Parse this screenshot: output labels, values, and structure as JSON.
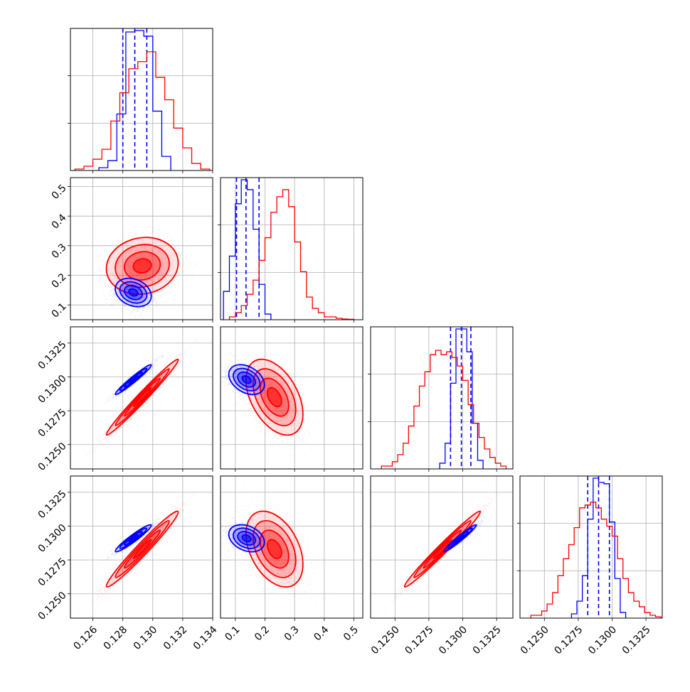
{
  "chart_data": {
    "type": "corner",
    "grid": true,
    "colors": {
      "blue": "#0000ff",
      "red": "#ff0000"
    },
    "axes": [
      {
        "range": [
          0.1245,
          0.134
        ],
        "ticks": [
          "0.126",
          "0.128",
          "0.130",
          "0.132",
          "0.134"
        ]
      },
      {
        "range": [
          0.05,
          0.53
        ],
        "ticks": [
          "0.1",
          "0.2",
          "0.3",
          "0.4",
          "0.5"
        ]
      },
      {
        "range": [
          0.1232,
          0.1337
        ],
        "ticks": [
          "0.1250",
          "0.1275",
          "0.1300",
          "0.1325"
        ]
      },
      {
        "range": [
          0.1232,
          0.1337
        ],
        "ticks": [
          "0.1250",
          "0.1275",
          "0.1300",
          "0.1325"
        ]
      }
    ],
    "series": [
      {
        "color": "blue",
        "quantiles": [
          [
            0.128,
            0.1288,
            0.1296
          ],
          [
            0.104,
            0.136,
            0.18
          ],
          [
            0.1291,
            0.1299,
            0.1306
          ],
          [
            0.1282,
            0.129,
            0.1298
          ]
        ],
        "hist": [
          {
            "edges": [
              0.1264,
              0.127,
              0.1276,
              0.1282,
              0.1288,
              0.1294,
              0.13,
              0.1306,
              0.1312
            ],
            "counts": [
              2,
              7,
              40,
              98,
              99,
              95,
              42,
              10
            ]
          },
          {
            "edges": [
              0.06,
              0.08,
              0.1,
              0.12,
              0.14,
              0.16,
              0.18,
              0.2,
              0.22
            ],
            "counts": [
              20,
              45,
              82,
              99,
              92,
              64,
              25,
              4
            ]
          },
          {
            "edges": [
              0.1283,
              0.1287,
              0.1291,
              0.1295,
              0.1299,
              0.1303,
              0.1307,
              0.1311,
              0.1315
            ],
            "counts": [
              4,
              18,
              60,
              98,
              98,
              82,
              32,
              6
            ]
          },
          {
            "edges": [
              0.127,
              0.1274,
              0.1278,
              0.1282,
              0.1286,
              0.129,
              0.1294,
              0.1298,
              0.1302,
              0.1306,
              0.131
            ],
            "counts": [
              3,
              12,
              30,
              70,
              99,
              96,
              95,
              68,
              28,
              4
            ]
          }
        ],
        "pairs": [
          {
            "x": 0,
            "y": 1,
            "cx": 0.1287,
            "cy": 0.142,
            "sx": 0.0006,
            "sy": 0.024,
            "rho": -0.25
          },
          {
            "x": 0,
            "y": 2,
            "cx": 0.1287,
            "cy": 0.1298,
            "sx": 0.0006,
            "sy": 0.00055,
            "rho": 0.97
          },
          {
            "x": 1,
            "y": 2,
            "cx": 0.138,
            "cy": 0.1298,
            "sx": 0.03,
            "sy": 0.00055,
            "rho": -0.35
          },
          {
            "x": 0,
            "y": 3,
            "cx": 0.1287,
            "cy": 0.1291,
            "sx": 0.0006,
            "sy": 0.0005,
            "rho": 0.95
          },
          {
            "x": 1,
            "y": 3,
            "cx": 0.138,
            "cy": 0.1291,
            "sx": 0.03,
            "sy": 0.0005,
            "rho": -0.3
          },
          {
            "x": 2,
            "y": 3,
            "cx": 0.1298,
            "cy": 0.1291,
            "sx": 0.0006,
            "sy": 0.0005,
            "rho": 0.97
          }
        ]
      },
      {
        "color": "red",
        "quantiles": null,
        "hist": [
          {
            "edges": [
              0.1248,
              0.1254,
              0.126,
              0.1266,
              0.1272,
              0.1278,
              0.1284,
              0.129,
              0.1296,
              0.1302,
              0.1308,
              0.1314,
              0.132,
              0.1326,
              0.1332,
              0.1338
            ],
            "counts": [
              1,
              3,
              8,
              15,
              35,
              55,
              72,
              77,
              84,
              66,
              50,
              30,
              16,
              5,
              1
            ]
          },
          {
            "edges": [
              0.08,
              0.1,
              0.12,
              0.14,
              0.16,
              0.18,
              0.2,
              0.22,
              0.24,
              0.26,
              0.28,
              0.3,
              0.32,
              0.34,
              0.36,
              0.38,
              0.4,
              0.42,
              0.44,
              0.46,
              0.48,
              0.5
            ],
            "counts": [
              2,
              5,
              10,
              18,
              28,
              42,
              58,
              76,
              87,
              92,
              80,
              55,
              34,
              16,
              8,
              5,
              2,
              2,
              1,
              0.5,
              0.3
            ]
          },
          {
            "edges": [
              0.124,
              0.1244,
              0.1248,
              0.1252,
              0.1256,
              0.126,
              0.1264,
              0.1268,
              0.1272,
              0.1276,
              0.128,
              0.1284,
              0.1288,
              0.1292,
              0.1296,
              0.13,
              0.1304,
              0.1308,
              0.1312,
              0.1316,
              0.132,
              0.1324,
              0.1328,
              0.1332
            ],
            "counts": [
              2,
              2,
              5,
              10,
              18,
              30,
              44,
              58,
              68,
              80,
              83,
              80,
              82,
              78,
              72,
              62,
              45,
              32,
              22,
              14,
              8,
              4,
              2
            ]
          },
          {
            "edges": [
              0.124,
              0.1244,
              0.1248,
              0.1252,
              0.1256,
              0.126,
              0.1264,
              0.1268,
              0.1272,
              0.1276,
              0.128,
              0.1284,
              0.1288,
              0.1292,
              0.1296,
              0.13,
              0.1304,
              0.1308,
              0.1312,
              0.1316,
              0.132,
              0.1324,
              0.1328,
              0.1332,
              0.1336
            ],
            "counts": [
              2,
              2,
              5,
              10,
              18,
              30,
              42,
              52,
              64,
              78,
              80,
              82,
              78,
              70,
              65,
              58,
              42,
              28,
              18,
              12,
              8,
              4,
              2,
              1
            ]
          }
        ],
        "pairs": [
          {
            "x": 0,
            "y": 1,
            "cx": 0.1293,
            "cy": 0.232,
            "sx": 0.0012,
            "sy": 0.048,
            "rho": 0.1
          },
          {
            "x": 0,
            "y": 2,
            "cx": 0.1293,
            "cy": 0.1285,
            "sx": 0.0012,
            "sy": 0.0014,
            "rho": 0.985
          },
          {
            "x": 1,
            "y": 2,
            "cx": 0.232,
            "cy": 0.1285,
            "sx": 0.048,
            "sy": 0.0014,
            "rho": -0.45
          },
          {
            "x": 0,
            "y": 3,
            "cx": 0.1293,
            "cy": 0.1283,
            "sx": 0.0012,
            "sy": 0.0014,
            "rho": 0.975
          },
          {
            "x": 1,
            "y": 3,
            "cx": 0.232,
            "cy": 0.1283,
            "sx": 0.048,
            "sy": 0.0014,
            "rho": -0.4
          },
          {
            "x": 2,
            "y": 3,
            "cx": 0.1285,
            "cy": 0.1283,
            "sx": 0.0014,
            "sy": 0.0014,
            "rho": 0.985
          }
        ]
      }
    ]
  }
}
